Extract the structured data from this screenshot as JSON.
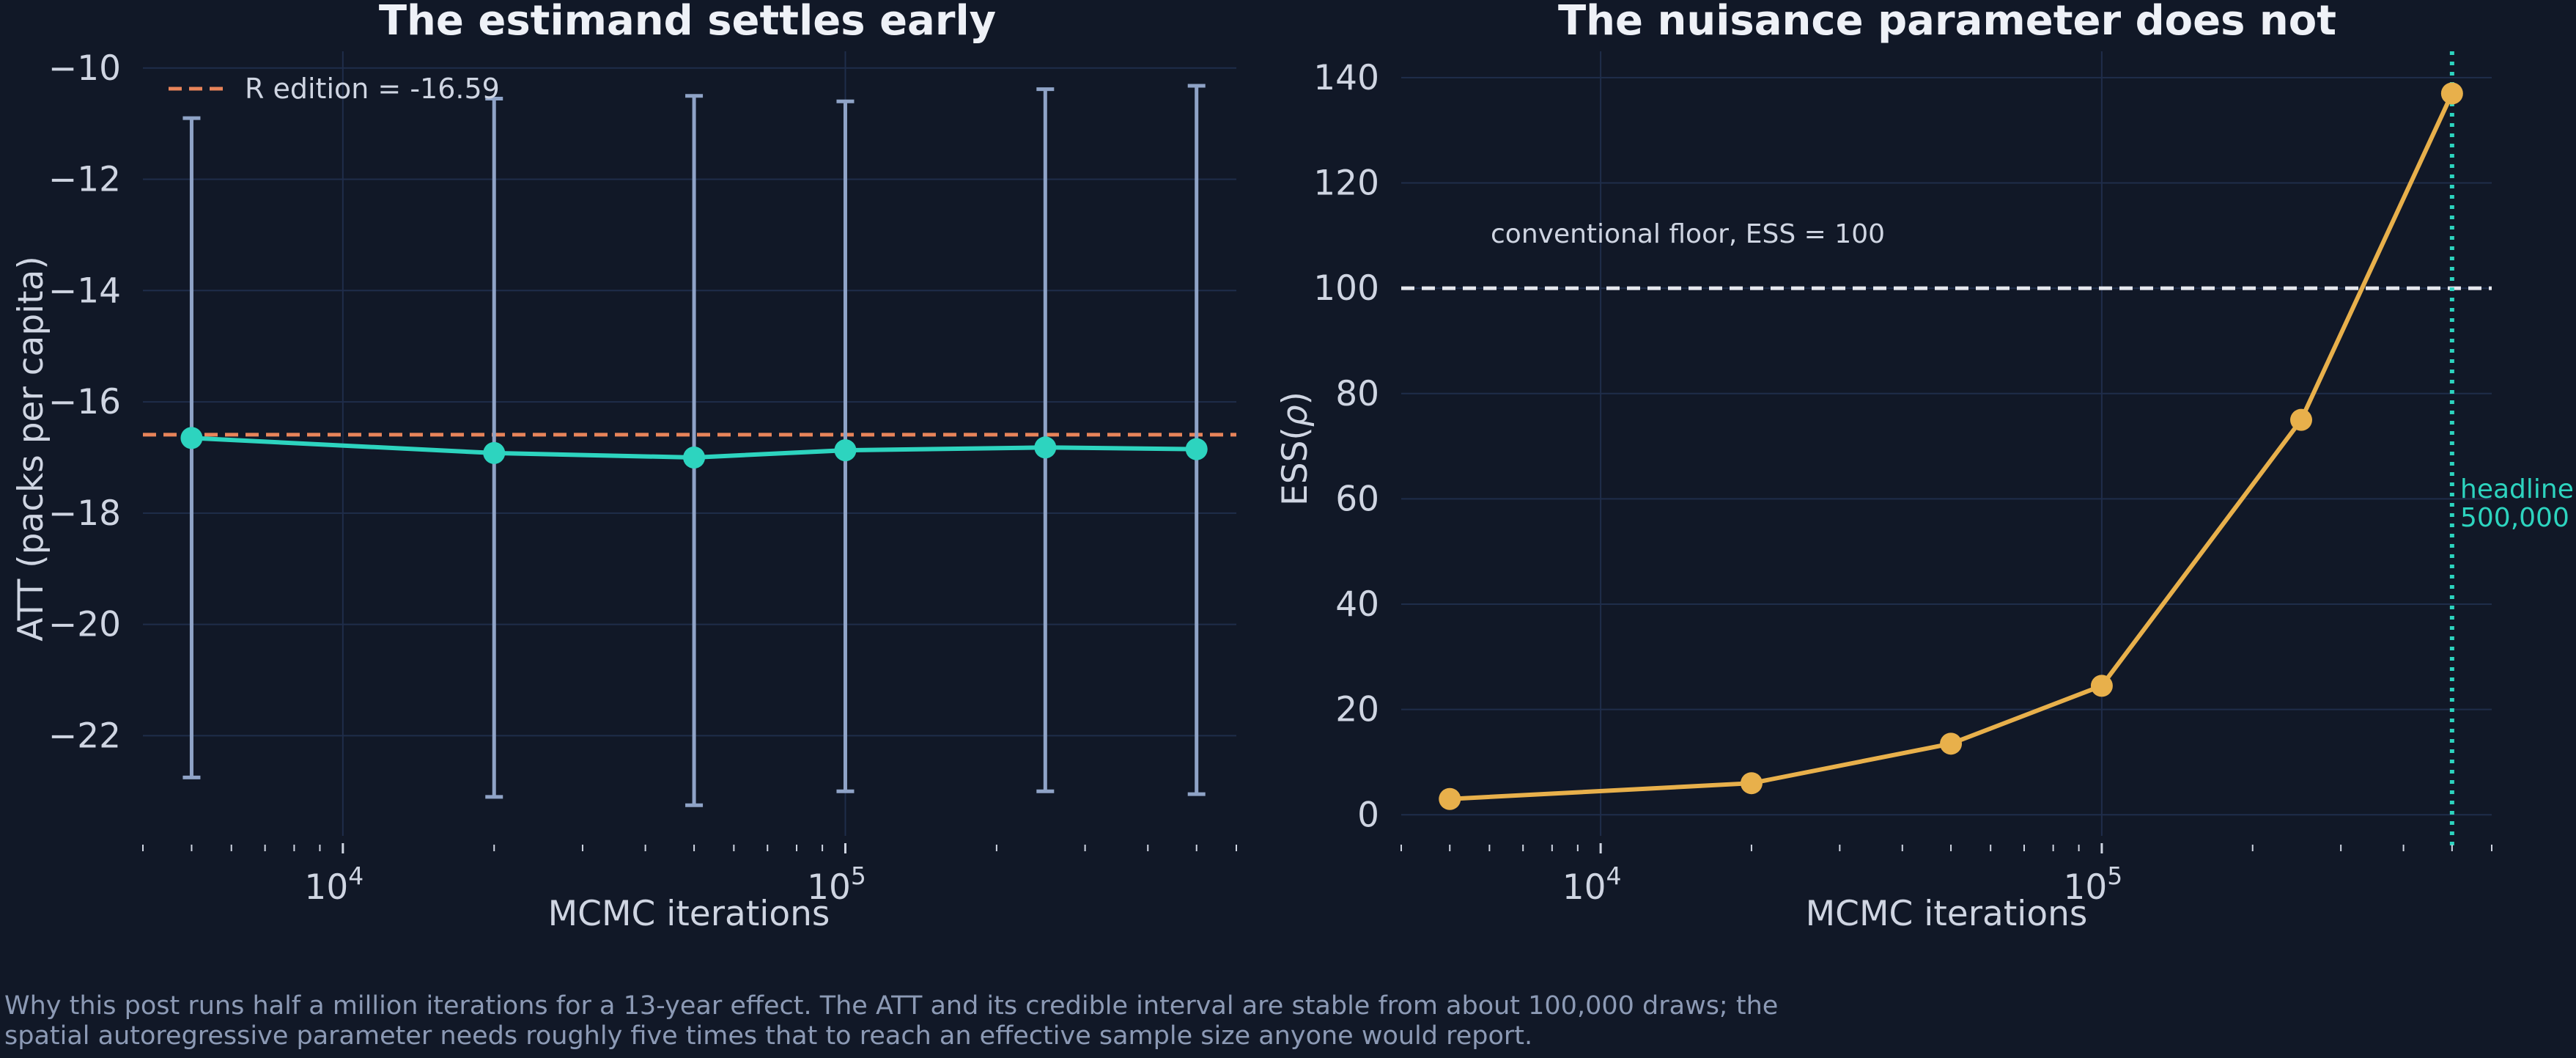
{
  "chart_data": [
    {
      "type": "line",
      "title": "The estimand settles early",
      "xlabel": "MCMC iterations",
      "ylabel": "ATT (packs per capita)",
      "xscale": "log",
      "xlim": [
        4000,
        600000
      ],
      "ylim": [
        -23.8,
        -9.7
      ],
      "x_ticks": [
        10000,
        100000
      ],
      "x_tick_labels": [
        {
          "base": "10",
          "exp": "4"
        },
        {
          "base": "10",
          "exp": "5"
        }
      ],
      "y_ticks": [
        -22,
        -20,
        -18,
        -16,
        -14,
        -12,
        -10
      ],
      "y_tick_labels": [
        "−22",
        "−20",
        "−18",
        "−16",
        "−14",
        "−12",
        "−10"
      ],
      "grid": true,
      "series": [
        {
          "x": [
            5000,
            20000,
            50000,
            100000,
            250000,
            500000
          ],
          "y": [
            -16.65,
            -16.92,
            -17.0,
            -16.87,
            -16.82,
            -16.85
          ],
          "lower": [
            -22.75,
            -23.1,
            -23.25,
            -23.0,
            -23.0,
            -23.05
          ],
          "upper": [
            -10.9,
            -10.55,
            -10.5,
            -10.6,
            -10.38,
            -10.32
          ],
          "color": "#2dd4bf",
          "errorbar_color": "#8fa3c7"
        }
      ],
      "reference_line": {
        "y": -16.59,
        "label": "R edition = -16.59",
        "color": "#e8845a",
        "style": "dashed"
      },
      "legend_position": "top-left"
    },
    {
      "type": "line",
      "title": "The nuisance parameter does not",
      "xlabel": "MCMC iterations",
      "ylabel_main": "ESS(",
      "ylabel_symbol": "ρ",
      "ylabel_end": ")",
      "xscale": "log",
      "xlim": [
        4000,
        600000
      ],
      "ylim": [
        -4,
        145
      ],
      "x_ticks": [
        10000,
        100000
      ],
      "x_tick_labels": [
        {
          "base": "10",
          "exp": "4"
        },
        {
          "base": "10",
          "exp": "5"
        }
      ],
      "y_ticks": [
        0,
        20,
        40,
        60,
        80,
        100,
        120,
        140
      ],
      "y_tick_labels": [
        "0",
        "20",
        "40",
        "60",
        "80",
        "100",
        "120",
        "140"
      ],
      "grid": true,
      "series": [
        {
          "x": [
            5000,
            20000,
            50000,
            100000,
            250000,
            500000
          ],
          "y": [
            3,
            6,
            13.5,
            24.5,
            75,
            137
          ],
          "color": "#e8b04b"
        }
      ],
      "reference_line": {
        "y": 100,
        "label": "conventional floor, ESS = 100",
        "color": "#e6e8ee",
        "style": "dashed"
      },
      "vertical_line": {
        "x": 500000,
        "label_line1": "headline",
        "label_line2": "500,000",
        "color": "#2dd4bf",
        "style": "dotted"
      }
    }
  ],
  "caption": "Why this post runs half a million iterations for a 13-year effect. The ATT and its credible interval are stable from about 100,000 draws; the spatial autoregressive parameter needs roughly five times that to reach an effective sample size anyone would report.",
  "colors": {
    "background": "#111827",
    "grid": "#1f2d4a",
    "text": "#cfd5e2"
  }
}
